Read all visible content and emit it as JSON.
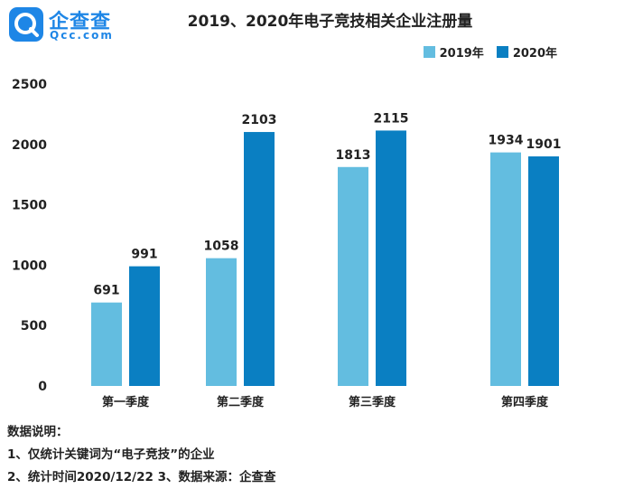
{
  "brand": {
    "name": "企查查",
    "domain": "Qcc.com",
    "icon": "qcc-logo-icon"
  },
  "colors": {
    "series_2019": "#63bde0",
    "series_2020": "#0a7fc2"
  },
  "chart_data": {
    "type": "bar",
    "title": "2019、2020年电子竞技相关企业注册量",
    "categories": [
      "第一季度",
      "第二季度",
      "第三季度",
      "第四季度"
    ],
    "series": [
      {
        "name": "2019年",
        "values": [
          691,
          1058,
          1813,
          1934
        ]
      },
      {
        "name": "2020年",
        "values": [
          991,
          2103,
          2115,
          1901
        ]
      }
    ],
    "yticks": [
      0,
      500,
      1000,
      1500,
      2000,
      2500
    ],
    "ylim": [
      0,
      2500
    ],
    "grid": false,
    "legend": "top-right",
    "data_labels": true
  },
  "notes": {
    "heading": "数据说明：",
    "line1": "1、仅统计关键词为“电子竞技”的企业",
    "line2": "2、统计时间2020/12/22   3、数据来源：企查查"
  }
}
